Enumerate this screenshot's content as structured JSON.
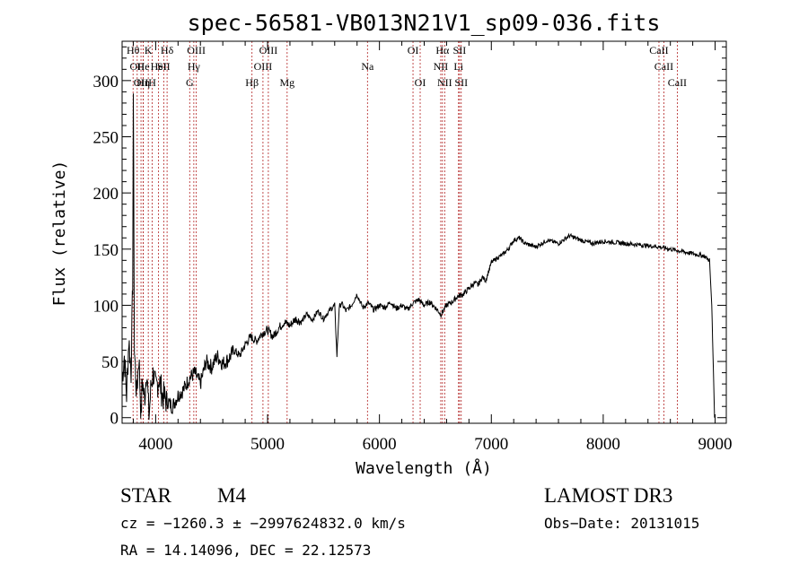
{
  "chart_data": {
    "type": "line",
    "title": "spec-56581-VB013N21V1_sp09-036.fits",
    "xlabel": "Wavelength (Å)",
    "ylabel": "Flux (relative)",
    "xlim": [
      3700,
      9100
    ],
    "ylim": [
      -5,
      335
    ],
    "x_ticks": [
      4000,
      5000,
      6000,
      7000,
      8000,
      9000
    ],
    "y_ticks": [
      0,
      50,
      100,
      150,
      200,
      250,
      300
    ],
    "spectrum": {
      "name": "flux",
      "x": [
        3700,
        3720,
        3740,
        3760,
        3780,
        3795,
        3800,
        3810,
        3830,
        3850,
        3870,
        3880,
        3900,
        3920,
        3940,
        3960,
        3980,
        4000,
        4030,
        4060,
        4100,
        4150,
        4200,
        4250,
        4300,
        4350,
        4400,
        4450,
        4500,
        4550,
        4600,
        4650,
        4700,
        4750,
        4800,
        4850,
        4900,
        4950,
        5000,
        5050,
        5100,
        5150,
        5200,
        5250,
        5300,
        5350,
        5400,
        5450,
        5500,
        5550,
        5600,
        5620,
        5640,
        5660,
        5700,
        5750,
        5800,
        5850,
        5900,
        5950,
        6000,
        6050,
        6100,
        6150,
        6200,
        6250,
        6300,
        6350,
        6400,
        6450,
        6500,
        6550,
        6600,
        6650,
        6700,
        6750,
        6800,
        6850,
        6880,
        6920,
        6950,
        7000,
        7050,
        7100,
        7150,
        7200,
        7250,
        7300,
        7400,
        7500,
        7600,
        7700,
        7800,
        7900,
        8000,
        8100,
        8200,
        8300,
        8400,
        8500,
        8600,
        8700,
        8750,
        8800,
        8850,
        8900,
        8950,
        8970,
        8985,
        8995
      ],
      "y": [
        35,
        55,
        20,
        70,
        40,
        120,
        290,
        60,
        20,
        55,
        0,
        35,
        15,
        45,
        0,
        30,
        40,
        25,
        35,
        20,
        15,
        10,
        20,
        25,
        35,
        40,
        30,
        50,
        45,
        55,
        48,
        52,
        60,
        55,
        65,
        72,
        68,
        75,
        78,
        72,
        80,
        85,
        82,
        88,
        85,
        92,
        87,
        95,
        88,
        95,
        100,
        55,
        98,
        102,
        95,
        100,
        110,
        98,
        102,
        96,
        100,
        98,
        103,
        97,
        100,
        96,
        102,
        105,
        100,
        103,
        98,
        92,
        100,
        103,
        108,
        110,
        115,
        120,
        118,
        125,
        122,
        138,
        142,
        145,
        150,
        158,
        160,
        155,
        152,
        158,
        155,
        162,
        158,
        155,
        157,
        156,
        155,
        154,
        153,
        152,
        150,
        148,
        147,
        146,
        145,
        144,
        140,
        100,
        40,
        0
      ]
    },
    "line_labels": [
      {
        "wl": 3798,
        "text": "Hθ",
        "row": 0
      },
      {
        "wl": 3835,
        "text": "OII",
        "row": 1
      },
      {
        "wl": 3889,
        "text": "Hη",
        "row": 2
      },
      {
        "wl": 3869,
        "text": "OII",
        "row": 2
      },
      {
        "wl": 3889,
        "text": "He",
        "row": 1
      },
      {
        "wl": 3934,
        "text": "K",
        "row": 0
      },
      {
        "wl": 3969,
        "text": "H",
        "row": 2
      },
      {
        "wl": 4026,
        "text": "HeI",
        "row": 1
      },
      {
        "wl": 4072,
        "text": "SII",
        "row": 1
      },
      {
        "wl": 4102,
        "text": "Hδ",
        "row": 0
      },
      {
        "wl": 4304,
        "text": "G",
        "row": 2
      },
      {
        "wl": 4341,
        "text": "Hγ",
        "row": 1
      },
      {
        "wl": 4363,
        "text": "OIII",
        "row": 0
      },
      {
        "wl": 4861,
        "text": "Hβ",
        "row": 2
      },
      {
        "wl": 4959,
        "text": "OIII",
        "row": 1
      },
      {
        "wl": 5007,
        "text": "OIII",
        "row": 0
      },
      {
        "wl": 5175,
        "text": "Mg",
        "row": 2
      },
      {
        "wl": 5893,
        "text": "Na",
        "row": 1
      },
      {
        "wl": 6300,
        "text": "OI",
        "row": 0
      },
      {
        "wl": 6364,
        "text": "OI",
        "row": 2
      },
      {
        "wl": 6548,
        "text": "NII",
        "row": 1
      },
      {
        "wl": 6563,
        "text": "Hα",
        "row": 0
      },
      {
        "wl": 6583,
        "text": "NII",
        "row": 2
      },
      {
        "wl": 6707,
        "text": "Li",
        "row": 1
      },
      {
        "wl": 6716,
        "text": "SII",
        "row": 0
      },
      {
        "wl": 6731,
        "text": "SII",
        "row": 2
      },
      {
        "wl": 8498,
        "text": "CaII",
        "row": 0
      },
      {
        "wl": 8542,
        "text": "CaII",
        "row": 1
      },
      {
        "wl": 8662,
        "text": "CaII",
        "row": 2
      }
    ]
  },
  "info": {
    "class_label": "STAR",
    "subclass": "M4",
    "survey": "LAMOST DR3",
    "cz_line": "cz = −1260.3 ± −2997624832.0 km/s",
    "obs_date": "Obs−Date: 20131015",
    "radec_line": "RA =  14.14096, DEC =  22.12573"
  },
  "colors": {
    "axis": "#000000",
    "spectrum": "#000000",
    "line_marker": "#b22222"
  }
}
